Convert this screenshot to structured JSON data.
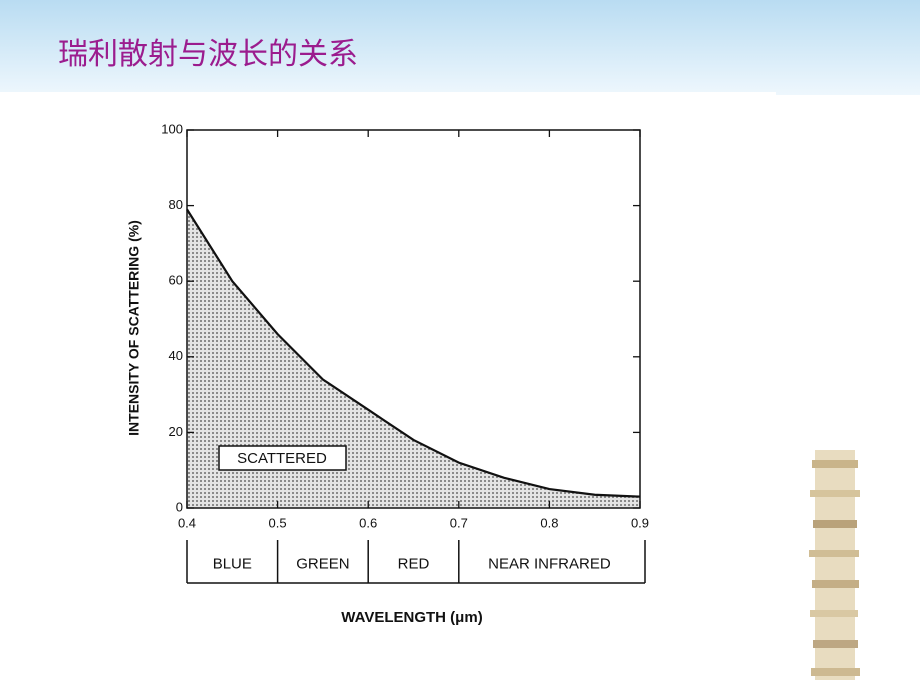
{
  "title": "瑞利散射与波长的关系",
  "chart_data": {
    "type": "area",
    "x_label": "WAVELENGTH (μm)",
    "y_label": "INTENSITY OF SCATTERING (%)",
    "annotation": "SCATTERED",
    "x": [
      0.4,
      0.45,
      0.5,
      0.55,
      0.6,
      0.65,
      0.7,
      0.75,
      0.8,
      0.85,
      0.9
    ],
    "values": [
      79,
      60,
      46,
      34,
      26,
      18,
      12,
      8,
      5,
      3.5,
      3
    ],
    "color": "#111111",
    "xlim": [
      0.4,
      0.9
    ],
    "xticks": [
      0.4,
      0.5,
      0.6,
      0.7,
      0.8,
      0.9
    ],
    "ylim": [
      0,
      100
    ],
    "yticks": [
      0,
      20,
      40,
      60,
      80,
      100
    ],
    "bands": [
      {
        "label": "BLUE",
        "from": 0.4,
        "to": 0.5
      },
      {
        "label": "GREEN",
        "from": 0.5,
        "to": 0.6
      },
      {
        "label": "RED",
        "from": 0.6,
        "to": 0.7
      },
      {
        "label": "NEAR INFRARED",
        "from": 0.7,
        "to": 0.9
      }
    ]
  }
}
